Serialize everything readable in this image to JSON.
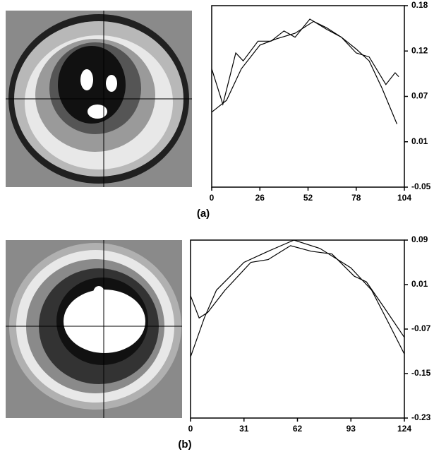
{
  "chart_data": [
    {
      "type": "line",
      "caption": "(a)",
      "xlim": [
        0,
        104
      ],
      "xticks": [
        0,
        26,
        52,
        78,
        104
      ],
      "ylim": [
        -0.05,
        0.18
      ],
      "yticks": [
        0.18,
        {
          "value": 0.1225,
          "label": "0.12"
        },
        {
          "value": 0.065,
          "label": "0.07"
        },
        {
          "value": 0.0075,
          "label": "0.01"
        },
        -0.05
      ],
      "series": [
        {
          "color": "#000000",
          "x": [
            0,
            8,
            16,
            26,
            35,
            45,
            55,
            62,
            70,
            78,
            85,
            92,
            100
          ],
          "values": [
            0.045,
            0.06,
            0.1,
            0.13,
            0.138,
            0.145,
            0.16,
            0.152,
            0.14,
            0.125,
            0.11,
            0.075,
            0.03
          ]
        },
        {
          "color": "#000000",
          "x": [
            0,
            6,
            13,
            17,
            25,
            32,
            39,
            45,
            53,
            62,
            70,
            78,
            85,
            94,
            99,
            101
          ],
          "values": [
            0.1,
            0.055,
            0.12,
            0.11,
            0.135,
            0.135,
            0.148,
            0.14,
            0.163,
            0.15,
            0.14,
            0.12,
            0.115,
            0.08,
            0.095,
            0.09
          ]
        }
      ]
    },
    {
      "type": "line",
      "caption": "(b)",
      "xlim": [
        0,
        124
      ],
      "xticks": [
        0,
        31,
        62,
        93,
        124
      ],
      "ylim": [
        -0.23,
        0.09
      ],
      "yticks": [
        0.09,
        0.01,
        -0.07,
        -0.15,
        -0.23
      ],
      "series": [
        {
          "color": "#000000",
          "x": [
            0,
            8,
            15,
            31,
            45,
            60,
            75,
            93,
            105,
            115,
            124
          ],
          "values": [
            -0.12,
            -0.05,
            0.0,
            0.05,
            0.07,
            0.09,
            0.075,
            0.04,
            0.0,
            -0.06,
            -0.115
          ]
        },
        {
          "color": "#000000",
          "x": [
            0,
            5,
            10,
            20,
            35,
            45,
            58,
            70,
            82,
            95,
            102,
            112,
            124
          ],
          "values": [
            -0.01,
            -0.05,
            -0.04,
            0.0,
            0.05,
            0.055,
            0.08,
            0.07,
            0.065,
            0.025,
            0.015,
            -0.03,
            -0.085
          ]
        }
      ]
    }
  ]
}
